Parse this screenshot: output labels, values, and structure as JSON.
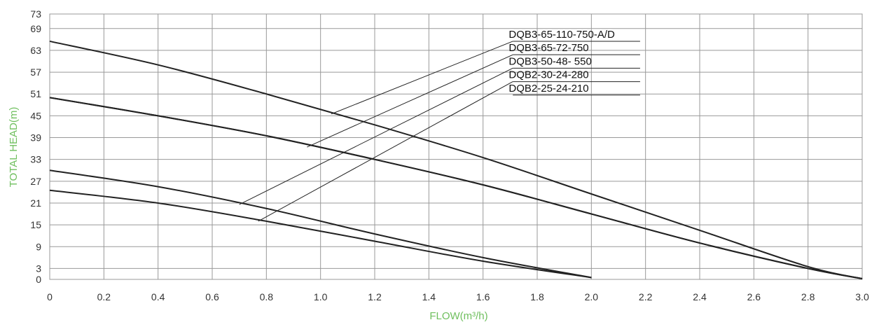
{
  "chart_data": {
    "type": "line",
    "title": "",
    "xlabel": "FLOW(m³/h)",
    "ylabel": "TOTAL HEAD(m)",
    "xlim": [
      0,
      3.0
    ],
    "ylim": [
      0,
      73
    ],
    "x_ticks": [
      "0",
      "0.2",
      "0.4",
      "0.6",
      "0.8",
      "1.0",
      "1.2",
      "1.4",
      "1.6",
      "1.8",
      "2.0",
      "2.2",
      "2.4",
      "2.6",
      "2.8",
      "3.0"
    ],
    "y_ticks": [
      "0",
      "3",
      "9",
      "15",
      "21",
      "27",
      "33",
      "39",
      "45",
      "51",
      "57",
      "63",
      "69",
      "73"
    ],
    "grid": true,
    "legend_placement": "top-right, labels with leader lines",
    "colors": {
      "curve": "#222222",
      "grid": "#999999",
      "axis_title": "#6fbf5e"
    },
    "series": [
      {
        "name": "DQB3-65-110-750-A/D",
        "x": [
          0,
          0.4,
          0.8,
          1.2,
          1.6,
          2.0,
          2.4,
          2.8,
          3.0
        ],
        "y": [
          65.5,
          59,
          51,
          42.5,
          33.5,
          23.5,
          13.5,
          3.5,
          0.2
        ]
      },
      {
        "name": "DQB3-65-72-750",
        "x": [
          0,
          0.4,
          0.8,
          1.2,
          1.6,
          2.0,
          2.4,
          2.8,
          3.0
        ],
        "y": [
          50,
          45,
          39.5,
          33,
          26,
          18,
          10,
          3,
          0.2
        ]
      },
      {
        "name": "DQB3-50-48- 550",
        "x": [
          0,
          0.4,
          0.8,
          1.2,
          1.6,
          2.0,
          2.4,
          2.8,
          3.0
        ],
        "y": [
          50,
          45,
          39.5,
          33,
          26,
          18,
          10,
          3,
          0.2
        ]
      },
      {
        "name": "DQB2-30-24-280",
        "x": [
          0,
          0.4,
          0.8,
          1.2,
          1.6,
          2.0
        ],
        "y": [
          30,
          25.5,
          19.5,
          12.5,
          6,
          0.5
        ]
      },
      {
        "name": "DQB2-25-24-210",
        "x": [
          0,
          0.4,
          0.8,
          1.2,
          1.6,
          2.0
        ],
        "y": [
          24.5,
          21,
          16,
          10.5,
          5,
          0.5
        ]
      }
    ]
  }
}
